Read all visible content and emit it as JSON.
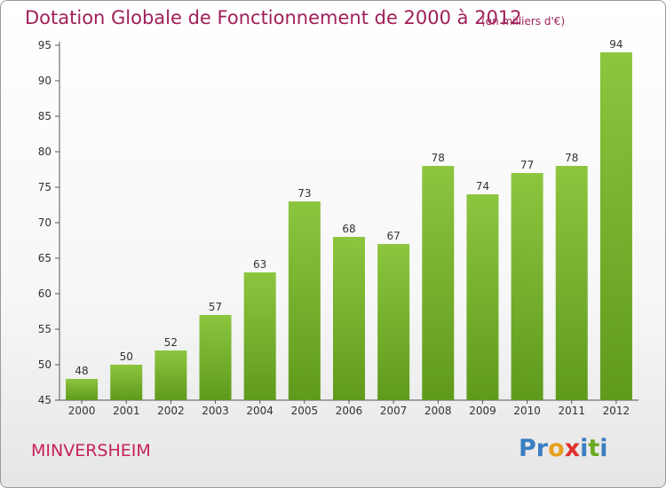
{
  "header": {
    "title": "Dotation Globale de Fonctionnement de 2000 à 2012",
    "subtitle": "(en milliers d'€)"
  },
  "footer": {
    "town": "MINVERSHEIM",
    "logo_parts": [
      {
        "text": "P",
        "color": "#3a7fc1"
      },
      {
        "text": "r",
        "color": "#3a7fc1"
      },
      {
        "text": "o",
        "color": "#e8a020"
      },
      {
        "text": "x",
        "color": "#e03030"
      },
      {
        "text": "i",
        "color": "#3a7fc1"
      },
      {
        "text": "t",
        "color": "#6aa820"
      },
      {
        "text": "i",
        "color": "#3a7fc1"
      }
    ]
  },
  "chart_data": {
    "type": "bar",
    "title": "Dotation Globale de Fonctionnement de 2000 à 2012",
    "categories": [
      "2000",
      "2001",
      "2002",
      "2003",
      "2004",
      "2005",
      "2006",
      "2007",
      "2008",
      "2009",
      "2010",
      "2011",
      "2012"
    ],
    "values": [
      48,
      50,
      52,
      57,
      63,
      73,
      68,
      67,
      78,
      74,
      77,
      78,
      94
    ],
    "ylim": [
      45,
      95
    ],
    "yticks": [
      45,
      50,
      55,
      60,
      65,
      70,
      75,
      80,
      85,
      90,
      95
    ],
    "grid": false,
    "bar_color": "#8cc63f",
    "bar_color_dark": "#5f9a1c"
  }
}
